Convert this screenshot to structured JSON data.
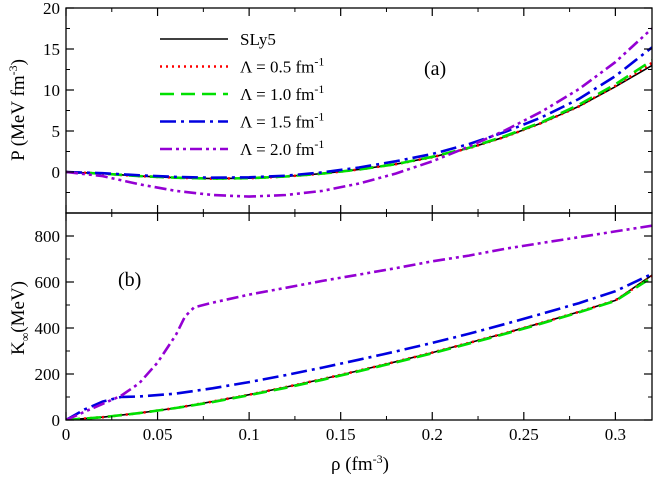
{
  "chart_data": [
    {
      "id": "pressure",
      "type": "line",
      "panel_label": "(a)",
      "ylabel": "P (MeV fm",
      "ylabel_sup": "-3",
      "ylabel_close": ")",
      "xlim": [
        0,
        0.32
      ],
      "ylim": [
        -5,
        20
      ],
      "yticks": [
        0,
        5,
        10,
        15,
        20
      ],
      "ytick_labels": [
        "0",
        "5",
        "10",
        "15",
        "20"
      ],
      "legend": {
        "position": "upper-left"
      },
      "series": [
        {
          "key": "sly5",
          "name": "SLy5",
          "name_sup": "",
          "color": "#000000",
          "dash": "none",
          "x": [
            0,
            0.02,
            0.04,
            0.06,
            0.08,
            0.1,
            0.12,
            0.14,
            0.16,
            0.18,
            0.2,
            0.22,
            0.24,
            0.26,
            0.28,
            0.3,
            0.32
          ],
          "y": [
            0,
            -0.2,
            -0.5,
            -0.7,
            -0.8,
            -0.75,
            -0.55,
            -0.2,
            0.3,
            0.95,
            1.8,
            2.9,
            4.3,
            6.0,
            8.0,
            10.4,
            13.0
          ]
        },
        {
          "key": "l05",
          "name": "Λ = 0.5 fm",
          "name_sup": "-1",
          "color": "#ff0000",
          "dash": "2,4",
          "x": [
            0,
            0.02,
            0.04,
            0.06,
            0.08,
            0.1,
            0.12,
            0.14,
            0.16,
            0.18,
            0.2,
            0.22,
            0.24,
            0.26,
            0.28,
            0.3,
            0.32
          ],
          "y": [
            0,
            -0.2,
            -0.5,
            -0.7,
            -0.8,
            -0.75,
            -0.55,
            -0.2,
            0.3,
            0.95,
            1.8,
            2.9,
            4.3,
            6.0,
            8.0,
            10.5,
            13.3
          ]
        },
        {
          "key": "l10",
          "name": "Λ = 1.0 fm",
          "name_sup": "-1",
          "color": "#00e000",
          "dash": "14,7",
          "x": [
            0,
            0.02,
            0.04,
            0.06,
            0.08,
            0.1,
            0.12,
            0.14,
            0.16,
            0.18,
            0.2,
            0.22,
            0.24,
            0.26,
            0.28,
            0.3,
            0.32
          ],
          "y": [
            0,
            -0.2,
            -0.5,
            -0.7,
            -0.8,
            -0.75,
            -0.55,
            -0.2,
            0.3,
            0.95,
            1.85,
            2.95,
            4.4,
            6.1,
            8.2,
            10.7,
            13.6
          ]
        },
        {
          "key": "l15",
          "name": "Λ = 1.5 fm",
          "name_sup": "-1",
          "color": "#0000e0",
          "dash": "16,5,3,5",
          "x": [
            0,
            0.02,
            0.04,
            0.06,
            0.08,
            0.1,
            0.12,
            0.14,
            0.16,
            0.18,
            0.2,
            0.22,
            0.24,
            0.26,
            0.28,
            0.3,
            0.32
          ],
          "y": [
            0,
            -0.15,
            -0.4,
            -0.6,
            -0.7,
            -0.65,
            -0.45,
            -0.05,
            0.55,
            1.3,
            2.2,
            3.4,
            4.9,
            6.7,
            8.9,
            11.7,
            15.2
          ]
        },
        {
          "key": "l20",
          "name": "Λ = 2.0 fm",
          "name_sup": "-1",
          "color": "#9400d3",
          "dash": "12,4,3,4,3,4",
          "x": [
            0,
            0.02,
            0.04,
            0.06,
            0.08,
            0.1,
            0.12,
            0.14,
            0.16,
            0.18,
            0.2,
            0.22,
            0.24,
            0.26,
            0.28,
            0.3,
            0.32
          ],
          "y": [
            0,
            -0.5,
            -1.5,
            -2.3,
            -2.8,
            -3.0,
            -2.8,
            -2.3,
            -1.4,
            -0.2,
            1.3,
            3.1,
            5.1,
            7.4,
            10.1,
            13.4,
            17.5
          ]
        }
      ]
    },
    {
      "id": "incompressibility",
      "type": "line",
      "panel_label": "(b)",
      "ylabel": "K",
      "ylabel_sub": "∞",
      "ylabel_rest": "(MeV)",
      "xlabel": "ρ (fm",
      "xlabel_sup": "-3",
      "xlabel_close": ")",
      "xlim": [
        0,
        0.32
      ],
      "ylim": [
        0,
        900
      ],
      "xticks": [
        0,
        0.05,
        0.1,
        0.15,
        0.2,
        0.25,
        0.3
      ],
      "xtick_labels": [
        "0",
        "0.05",
        "0.1",
        "0.15",
        "0.2",
        "0.25",
        "0.3"
      ],
      "yticks": [
        0,
        200,
        400,
        600,
        800
      ],
      "ytick_labels": [
        "0",
        "200",
        "400",
        "600",
        "800"
      ],
      "series": [
        {
          "key": "sly5",
          "color": "#000000",
          "dash": "none",
          "x": [
            0,
            0.02,
            0.04,
            0.06,
            0.08,
            0.1,
            0.12,
            0.14,
            0.16,
            0.18,
            0.2,
            0.22,
            0.24,
            0.26,
            0.28,
            0.3,
            0.32
          ],
          "y": [
            0,
            12,
            30,
            52,
            80,
            110,
            143,
            178,
            215,
            253,
            293,
            335,
            378,
            423,
            470,
            520,
            630
          ]
        },
        {
          "key": "l05",
          "color": "#ff0000",
          "dash": "2,4",
          "x": [
            0,
            0.02,
            0.04,
            0.06,
            0.08,
            0.1,
            0.12,
            0.14,
            0.16,
            0.18,
            0.2,
            0.22,
            0.24,
            0.26,
            0.28,
            0.3,
            0.32
          ],
          "y": [
            0,
            12,
            30,
            52,
            80,
            110,
            143,
            178,
            215,
            253,
            293,
            335,
            378,
            423,
            470,
            520,
            625
          ]
        },
        {
          "key": "l10",
          "color": "#00e000",
          "dash": "14,7",
          "x": [
            0,
            0.02,
            0.04,
            0.06,
            0.08,
            0.1,
            0.12,
            0.14,
            0.16,
            0.18,
            0.2,
            0.22,
            0.24,
            0.26,
            0.28,
            0.3,
            0.32
          ],
          "y": [
            0,
            12,
            30,
            52,
            78,
            108,
            140,
            175,
            212,
            250,
            290,
            332,
            375,
            420,
            468,
            518,
            620
          ]
        },
        {
          "key": "l15",
          "color": "#0000e0",
          "dash": "16,5,3,5",
          "x": [
            0,
            0.01,
            0.02,
            0.03,
            0.04,
            0.06,
            0.08,
            0.1,
            0.12,
            0.14,
            0.16,
            0.18,
            0.2,
            0.22,
            0.24,
            0.26,
            0.28,
            0.3,
            0.32
          ],
          "y": [
            0,
            45,
            80,
            100,
            102,
            115,
            138,
            165,
            195,
            228,
            262,
            298,
            335,
            375,
            418,
            462,
            508,
            560,
            635
          ]
        },
        {
          "key": "l20",
          "color": "#9400d3",
          "dash": "12,4,3,4,3,4",
          "x": [
            0,
            0.01,
            0.02,
            0.03,
            0.04,
            0.05,
            0.06,
            0.065,
            0.07,
            0.08,
            0.1,
            0.12,
            0.14,
            0.16,
            0.18,
            0.2,
            0.22,
            0.24,
            0.26,
            0.28,
            0.3,
            0.32
          ],
          "y": [
            0,
            35,
            70,
            105,
            160,
            250,
            370,
            450,
            490,
            510,
            545,
            575,
            605,
            632,
            660,
            690,
            715,
            745,
            770,
            795,
            820,
            845
          ]
        }
      ]
    }
  ]
}
